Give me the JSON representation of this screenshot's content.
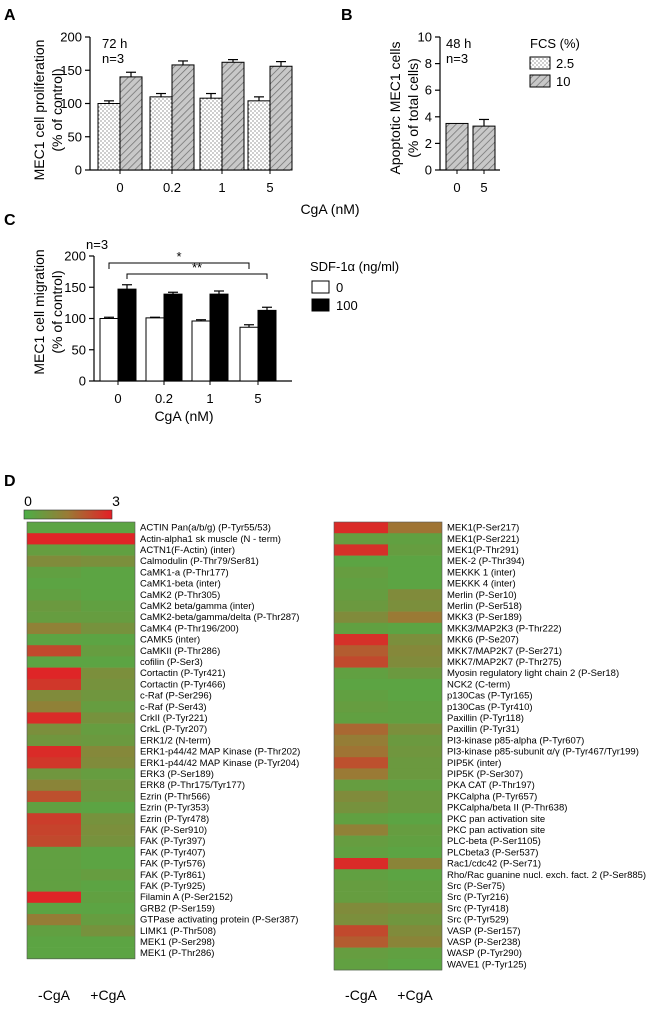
{
  "chart_data": [
    {
      "panel": "A",
      "type": "bar",
      "annotation": [
        "72 h",
        "n=3"
      ],
      "ylabel": [
        "MEC1 cell proliferation",
        "(% of control)"
      ],
      "xlabel": "CgA (nM)",
      "categories": [
        "0",
        "0.2",
        "1",
        "5"
      ],
      "ylim": [
        0,
        200
      ],
      "yticks": [
        "0",
        "50",
        "100",
        "150",
        "200"
      ],
      "series": [
        {
          "name": "2.5",
          "values": [
            100,
            110,
            108,
            104
          ],
          "errors": [
            4,
            5,
            7,
            6
          ],
          "fill": "dotted"
        },
        {
          "name": "10",
          "values": [
            140,
            158,
            162,
            156
          ],
          "errors": [
            7,
            6,
            4,
            7
          ],
          "fill": "hatched"
        }
      ]
    },
    {
      "panel": "B",
      "type": "bar",
      "annotation": [
        "48 h",
        "n=3"
      ],
      "ylabel": [
        "Apoptotic MEC1 cells",
        "(% of total cells)"
      ],
      "categories": [
        "0",
        "5"
      ],
      "ylim": [
        0,
        10
      ],
      "yticks": [
        "0",
        "2",
        "4",
        "6",
        "8",
        "10"
      ],
      "legend_title": "FCS (%)",
      "legend": [
        "2.5",
        "10"
      ],
      "series": [
        {
          "name": "10",
          "values": [
            3.5,
            3.3
          ],
          "errors": [
            0,
            0.5
          ],
          "fill": "hatched"
        }
      ]
    },
    {
      "panel": "C",
      "type": "bar",
      "annotation": [
        "n=3"
      ],
      "ylabel": [
        "MEC1 cell migration",
        "(% of control)"
      ],
      "xlabel": "CgA (nM)",
      "categories": [
        "0",
        "0.2",
        "1",
        "5"
      ],
      "ylim": [
        0,
        200
      ],
      "yticks": [
        "0",
        "50",
        "100",
        "150",
        "200"
      ],
      "legend_title": "SDF-1α (ng/ml)",
      "legend": [
        "0",
        "100"
      ],
      "significance": [
        "*",
        "**"
      ],
      "series": [
        {
          "name": "0",
          "values": [
            100,
            101,
            96,
            86
          ],
          "errors": [
            2,
            1,
            2,
            4
          ],
          "fill": "white"
        },
        {
          "name": "100",
          "values": [
            147,
            139,
            139,
            113
          ],
          "errors": [
            7,
            3,
            5,
            5
          ],
          "fill": "black"
        }
      ]
    },
    {
      "panel": "D",
      "type": "heatmap",
      "scale_range": [
        0,
        3
      ],
      "scale_labels": [
        "0",
        "3"
      ],
      "columns": [
        "-CgA",
        "+CgA"
      ],
      "left": {
        "rows": [
          "ACTIN Pan(a/b/g) (P-Tyr55/53)",
          "Actin-alpha1 sk muscle (N - term)",
          "ACTN1(F-Actin) (inter)",
          "Calmodulin (P-Thr79/Ser81)",
          "CaMK1-a (P-Thr177)",
          "CaMK1-beta (inter)",
          "CaMK2 (P-Thr305)",
          "CaMK2 beta/gamma (inter)",
          "CaMK2-beta/gamma/delta (P-Thr287)",
          "CaMK4 (P-Thr196/200)",
          "CAMK5 (inter)",
          "CaMKII (P-Thr286)",
          "cofilin (P-Ser3)",
          "Cortactin (P-Tyr421)",
          "Cortactin (P-Tyr466)",
          "c-Raf (P-Ser296)",
          "c-Raf (P-Ser43)",
          "CrkII (P-Tyr221)",
          "CrkL (P-Tyr207)",
          "ERK1/2 (N-term)",
          "ERK1-p44/42 MAP Kinase (P-Thr202)",
          "ERK1-p44/42 MAP Kinase (P-Tyr204)",
          "ERK3 (P-Ser189)",
          "ERK8 (P-Thr175/Tyr177)",
          "Ezrin (P-Thr566)",
          "Ezrin (P-Tyr353)",
          "Ezrin (P-Tyr478)",
          "FAK (P-Ser910)",
          "FAK (P-Tyr397)",
          "FAK (P-Tyr407)",
          "FAK (P-Tyr576)",
          "FAK (P-Tyr861)",
          "FAK (P-Tyr925)",
          "Filamin A (P-Ser2152)",
          "GRB2 (P-Ser159)",
          "GTPase activating protein (P-Ser387)",
          "LIMK1 (P-Thr508)",
          "MEK1 (P-Ser298)",
          "MEK1 (P-Thr286)"
        ],
        "values": [
          [
            0.3,
            0.3
          ],
          [
            2.9,
            2.9
          ],
          [
            0.5,
            0.4
          ],
          [
            1.0,
            0.9
          ],
          [
            0.4,
            0.3
          ],
          [
            0.3,
            0.3
          ],
          [
            0.4,
            0.3
          ],
          [
            0.6,
            0.4
          ],
          [
            0.5,
            0.5
          ],
          [
            1.3,
            0.8
          ],
          [
            0.3,
            0.3
          ],
          [
            2.3,
            0.5
          ],
          [
            0.3,
            0.3
          ],
          [
            2.9,
            0.9
          ],
          [
            2.6,
            0.8
          ],
          [
            1.0,
            0.7
          ],
          [
            1.3,
            0.5
          ],
          [
            2.8,
            0.8
          ],
          [
            0.9,
            0.5
          ],
          [
            0.7,
            0.6
          ],
          [
            2.8,
            1.1
          ],
          [
            2.6,
            1.0
          ],
          [
            0.7,
            0.5
          ],
          [
            1.2,
            0.7
          ],
          [
            2.2,
            0.6
          ],
          [
            0.4,
            0.3
          ],
          [
            2.5,
            0.8
          ],
          [
            2.4,
            0.9
          ],
          [
            2.3,
            0.8
          ],
          [
            0.4,
            0.3
          ],
          [
            0.4,
            0.3
          ],
          [
            0.4,
            0.5
          ],
          [
            0.4,
            0.3
          ],
          [
            2.9,
            0.4
          ],
          [
            0.3,
            0.3
          ],
          [
            1.4,
            0.5
          ],
          [
            0.4,
            0.8
          ],
          [
            0.3,
            0.3
          ],
          [
            0.3,
            0.3
          ]
        ]
      },
      "right": {
        "rows": [
          "MEK1(P-Ser217)",
          "MEK1(P-Ser221)",
          "MEK1(P-Thr291)",
          "MEK-2 (P-Thr394)",
          "MEKKK 1 (inter)",
          "MEKKK 4 (inter)",
          "Merlin (P-Ser10)",
          "Merlin (P-Ser518)",
          "MKK3 (P-Ser189)",
          "MKK3/MAP2K3 (P-Thr222)",
          "MKK6 (P-Se207)",
          "MKK7/MAP2K7 (P-Ser271)",
          "MKK7/MAP2K7 (P-Thr275)",
          "Myosin regulatory light chain 2 (P-Ser18)",
          "NCK2 (C-term)",
          "p130Cas (P-Tyr165)",
          "p130Cas (P-Tyr410)",
          "Paxillin (P-Tyr118)",
          "Paxillin (P-Tyr31)",
          "PI3-kinase p85-alpha (P-Tyr607)",
          "PI3-kinase p85-subunit α/γ (P-Tyr467/Tyr199)",
          "PIP5K (inter)",
          "PIP5K (P-Ser307)",
          "PKA CAT (P-Thr197)",
          "PKCalpha (P-Tyr657)",
          "PKCalpha/beta II (P-Thr638)",
          "PKC pan activation site",
          "PKC pan activation site",
          "PLC-beta (P-Ser1105)",
          "PLCbeta3 (P-Ser537)",
          "Rac1/cdc42 (P-Ser71)",
          "Rho/Rac guanine nucl. exch. fact. 2 (P-Ser885)",
          "Src (P-Ser75)",
          "Src (P-Tyr216)",
          "Src (P-Tyr418)",
          "Src (P-Tyr529)",
          "VASP (P-Ser157)",
          "VASP (P-Ser238)",
          "WASP (P-Tyr290)",
          "WAVE1 (P-Tyr125)"
        ],
        "values": [
          [
            2.8,
            1.6
          ],
          [
            0.5,
            0.4
          ],
          [
            2.7,
            0.5
          ],
          [
            0.3,
            0.3
          ],
          [
            0.5,
            0.3
          ],
          [
            0.4,
            0.3
          ],
          [
            0.5,
            1.0
          ],
          [
            0.6,
            0.9
          ],
          [
            1.0,
            1.5
          ],
          [
            0.4,
            0.3
          ],
          [
            2.7,
            0.9
          ],
          [
            2.0,
            1.1
          ],
          [
            2.3,
            1.0
          ],
          [
            0.4,
            0.6
          ],
          [
            0.3,
            0.3
          ],
          [
            0.4,
            0.3
          ],
          [
            0.5,
            0.4
          ],
          [
            0.4,
            0.4
          ],
          [
            1.8,
            0.9
          ],
          [
            1.4,
            0.6
          ],
          [
            1.6,
            0.7
          ],
          [
            2.2,
            0.6
          ],
          [
            1.5,
            0.6
          ],
          [
            0.5,
            0.4
          ],
          [
            1.0,
            0.6
          ],
          [
            0.8,
            0.6
          ],
          [
            0.4,
            0.3
          ],
          [
            1.3,
            0.5
          ],
          [
            0.5,
            0.4
          ],
          [
            0.4,
            0.3
          ],
          [
            2.8,
            1.2
          ],
          [
            0.4,
            0.3
          ],
          [
            0.5,
            0.4
          ],
          [
            0.5,
            0.4
          ],
          [
            1.0,
            0.9
          ],
          [
            0.9,
            0.7
          ],
          [
            2.3,
            1.0
          ],
          [
            2.0,
            1.2
          ],
          [
            0.5,
            0.4
          ],
          [
            0.4,
            0.3
          ]
        ]
      }
    }
  ]
}
